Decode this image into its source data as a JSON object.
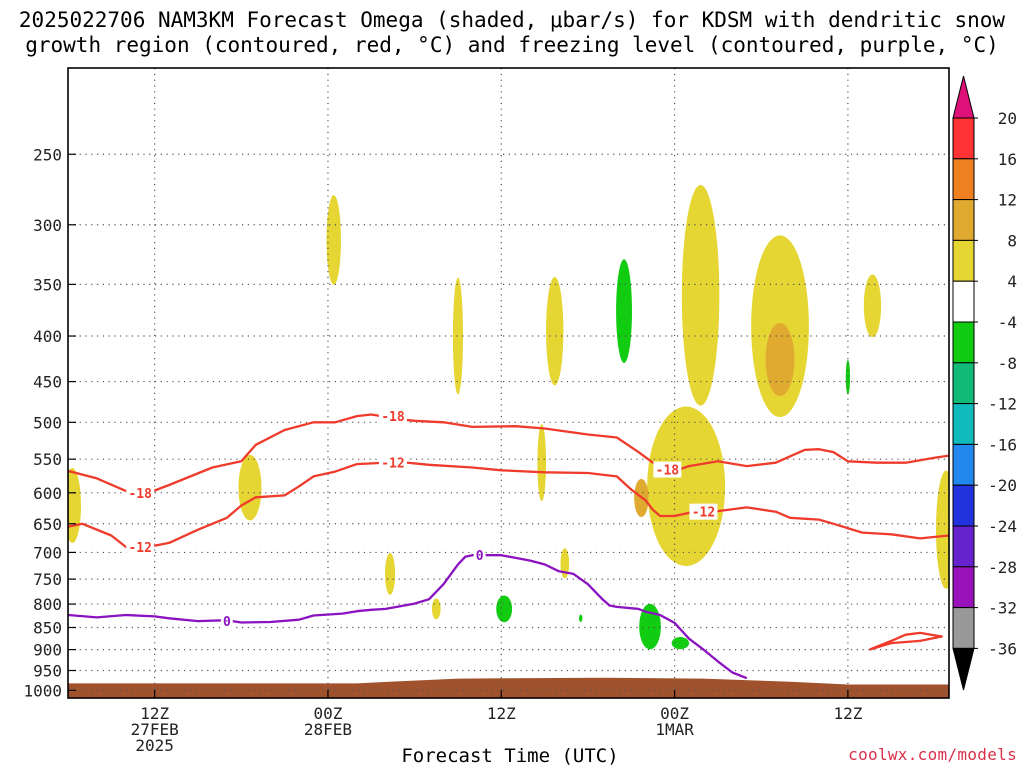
{
  "title_line1": "2025022706 NAM3KM Forecast Omega (shaded, μbar/s) for KDSM with dendritic snow",
  "title_line2": "growth region (contoured, red, °C) and freezing level (contoured, purple, °C)",
  "xlabel": "Forecast Time (UTC)",
  "credit": "coolwx.com/models",
  "chart_data": {
    "type": "heatmap",
    "title": "2025022706 NAM3KM Forecast Omega (shaded, μbar/s) for KDSM with dendritic snow growth region (contoured, red, °C) and freezing level (contoured, purple, °C)",
    "xlabel": "Forecast Time (UTC)",
    "ylabel": "",
    "y_scale": "log-pressure (hPa)",
    "ylim": [
      1020,
      200
    ],
    "xlim": [
      0,
      61
    ],
    "x_units": "forecast hours after 2025-02-27 06Z",
    "grid": "dotted horizontal lines at each pressure level and vertical lines at each 12-hour mark",
    "y_ticks": [
      250,
      300,
      350,
      400,
      450,
      500,
      550,
      600,
      650,
      700,
      750,
      800,
      850,
      900,
      950,
      1000
    ],
    "x_ticks": [
      {
        "x": 6,
        "lines": [
          "12Z",
          "27FEB",
          "2025"
        ]
      },
      {
        "x": 18,
        "lines": [
          "00Z",
          "28FEB"
        ]
      },
      {
        "x": 30,
        "lines": [
          "12Z"
        ]
      },
      {
        "x": 42,
        "lines": [
          "00Z",
          "1MAR"
        ]
      },
      {
        "x": 54,
        "lines": [
          "12Z"
        ]
      }
    ],
    "colorbar": {
      "labels": [
        "20",
        "16",
        "12",
        "8",
        "4",
        "-4",
        "-8",
        "-12",
        "-16",
        "-20",
        "-24",
        "-28",
        "-32",
        "-36"
      ],
      "colors": [
        "#ff3333",
        "#ee8022",
        "#e0a930",
        "#e6d633",
        "#ffffff",
        "#11cc11",
        "#11bb77",
        "#11bbbb",
        "#2288ee",
        "#2233dd",
        "#6622cc",
        "#9911bb",
        "#999999"
      ],
      "top_arrow_color": "#dd1177",
      "bottom_arrow_color": "#000000"
    },
    "series": [
      {
        "name": "-18",
        "color": "#ef3b2c",
        "points": [
          [
            0,
            567
          ],
          [
            2,
            578
          ],
          [
            4,
            597
          ],
          [
            5,
            605
          ],
          [
            7,
            588
          ],
          [
            10,
            562
          ],
          [
            12,
            553
          ],
          [
            13,
            530
          ],
          [
            15,
            510
          ],
          [
            17,
            500
          ],
          [
            18.5,
            500
          ],
          [
            20,
            492
          ],
          [
            21,
            490
          ],
          [
            23,
            496
          ],
          [
            24,
            498
          ],
          [
            26,
            500
          ],
          [
            28,
            506
          ],
          [
            31,
            505
          ],
          [
            33,
            508
          ],
          [
            36,
            516
          ],
          [
            38,
            520
          ],
          [
            39.5,
            540
          ],
          [
            40.5,
            555
          ],
          [
            41.5,
            565
          ],
          [
            42,
            567
          ],
          [
            43,
            560
          ],
          [
            45,
            553
          ],
          [
            47,
            560
          ],
          [
            49,
            555
          ],
          [
            51,
            537
          ],
          [
            52,
            536
          ],
          [
            53,
            540
          ],
          [
            54,
            553
          ],
          [
            56,
            555
          ],
          [
            58,
            555
          ],
          [
            60,
            548
          ],
          [
            61,
            545
          ]
        ],
        "labels": [
          {
            "x": 5,
            "y": 600,
            "text": "-18"
          },
          {
            "x": 22.5,
            "y": 492,
            "text": "-18"
          },
          {
            "x": 41.5,
            "y": 565,
            "text": "-18"
          }
        ]
      },
      {
        "name": "-12",
        "color": "#ef3b2c",
        "points": [
          [
            0,
            655
          ],
          [
            1,
            650
          ],
          [
            3,
            670
          ],
          [
            4,
            690
          ],
          [
            5,
            693
          ],
          [
            7,
            683
          ],
          [
            9,
            660
          ],
          [
            11,
            640
          ],
          [
            12,
            620
          ],
          [
            13,
            607
          ],
          [
            15,
            604
          ],
          [
            16,
            590
          ],
          [
            17,
            575
          ],
          [
            18.5,
            568
          ],
          [
            20,
            557
          ],
          [
            23,
            554
          ],
          [
            25,
            558
          ],
          [
            28,
            562
          ],
          [
            30,
            566
          ],
          [
            33,
            569
          ],
          [
            36,
            570
          ],
          [
            38,
            575
          ],
          [
            39,
            595
          ],
          [
            40,
            612
          ],
          [
            40.5,
            627
          ],
          [
            41,
            637
          ],
          [
            42,
            637
          ],
          [
            43,
            632
          ],
          [
            45,
            629
          ],
          [
            47,
            623
          ],
          [
            49,
            630
          ],
          [
            50,
            640
          ],
          [
            52,
            643
          ],
          [
            53,
            650
          ],
          [
            55,
            665
          ],
          [
            57,
            668
          ],
          [
            59,
            675
          ],
          [
            61,
            670
          ]
        ],
        "labels": [
          {
            "x": 5,
            "y": 690,
            "text": "-12"
          },
          {
            "x": 22.5,
            "y": 555,
            "text": "-12"
          },
          {
            "x": 44,
            "y": 630,
            "text": "-12"
          }
        ]
      },
      {
        "name": "0",
        "color": "#8a12c0",
        "points": [
          [
            0,
            823
          ],
          [
            2,
            828
          ],
          [
            4,
            823
          ],
          [
            6,
            826
          ],
          [
            7,
            830
          ],
          [
            9,
            836
          ],
          [
            11,
            834
          ],
          [
            12,
            839
          ],
          [
            14,
            838
          ],
          [
            16,
            833
          ],
          [
            17,
            824
          ],
          [
            19,
            820
          ],
          [
            20,
            815
          ],
          [
            21,
            812
          ],
          [
            22,
            810
          ],
          [
            24,
            799
          ],
          [
            25,
            790
          ],
          [
            26,
            760
          ],
          [
            27,
            722
          ],
          [
            27.5,
            708
          ],
          [
            28,
            705
          ],
          [
            30,
            705
          ],
          [
            31,
            710
          ],
          [
            32,
            715
          ],
          [
            33,
            722
          ],
          [
            34,
            735
          ],
          [
            35,
            740
          ],
          [
            36,
            760
          ],
          [
            37,
            790
          ],
          [
            37.5,
            803
          ],
          [
            38,
            806
          ],
          [
            39.5,
            810
          ],
          [
            40,
            816
          ],
          [
            41,
            823
          ],
          [
            42,
            840
          ],
          [
            43,
            875
          ],
          [
            44,
            900
          ],
          [
            45,
            928
          ],
          [
            46,
            955
          ],
          [
            47,
            969
          ]
        ],
        "labels": [
          {
            "x": 11,
            "y": 836,
            "text": "0"
          },
          {
            "x": 28.5,
            "y": 705,
            "text": "0"
          }
        ]
      },
      {
        "name": "",
        "color": "#ef3b2c",
        "points": [
          [
            55.5,
            900
          ],
          [
            57,
            880
          ],
          [
            58,
            866
          ],
          [
            59,
            862
          ],
          [
            60.5,
            870
          ],
          [
            59,
            880
          ],
          [
            57,
            885
          ],
          [
            55.5,
            900
          ]
        ],
        "labels": []
      }
    ],
    "omega_cells": [
      {
        "cx": 18.4,
        "p": 312,
        "rx": 0.5,
        "ry": 36,
        "color": "#e6d633"
      },
      {
        "cx": 0.3,
        "p": 620,
        "rx": 0.6,
        "ry": 60,
        "color": "#e6d633"
      },
      {
        "cx": 12.6,
        "p": 592,
        "rx": 0.8,
        "ry": 50,
        "color": "#e6d633"
      },
      {
        "cx": 22.3,
        "p": 740,
        "rx": 0.35,
        "ry": 40,
        "color": "#e6d633"
      },
      {
        "cx": 25.5,
        "p": 810,
        "rx": 0.3,
        "ry": 22,
        "color": "#e6d633"
      },
      {
        "cx": 27,
        "p": 400,
        "rx": 0.35,
        "ry": 60,
        "color": "#e6d633"
      },
      {
        "cx": 32.8,
        "p": 555,
        "rx": 0.3,
        "ry": 55,
        "color": "#e6d633"
      },
      {
        "cx": 33.7,
        "p": 395,
        "rx": 0.6,
        "ry": 55,
        "color": "#e6d633"
      },
      {
        "cx": 34.4,
        "p": 720,
        "rx": 0.3,
        "ry": 28,
        "color": "#e6d633"
      },
      {
        "cx": 43.8,
        "p": 360,
        "rx": 1.3,
        "ry": 100,
        "color": "#e6d633"
      },
      {
        "cx": 42.8,
        "p": 590,
        "rx": 2.7,
        "ry": 120,
        "color": "#e6d633"
      },
      {
        "cx": 49.3,
        "p": 390,
        "rx": 2.0,
        "ry": 90,
        "color": "#e6d633"
      },
      {
        "cx": 55.7,
        "p": 370,
        "rx": 0.6,
        "ry": 30,
        "color": "#e6d633"
      },
      {
        "cx": 60.8,
        "p": 660,
        "rx": 0.7,
        "ry": 100,
        "color": "#e6d633"
      },
      {
        "cx": 49.3,
        "p": 425,
        "rx": 1.0,
        "ry": 40,
        "color": "#e0a930"
      },
      {
        "cx": 39.7,
        "p": 608,
        "rx": 0.5,
        "ry": 30,
        "color": "#e0a930"
      },
      {
        "cx": 38.5,
        "p": 375,
        "rx": 0.55,
        "ry": 50,
        "color": "#11cc11"
      },
      {
        "cx": 54,
        "p": 445,
        "rx": 0.15,
        "ry": 20,
        "color": "#11cc11"
      },
      {
        "cx": 30.2,
        "p": 810,
        "rx": 0.55,
        "ry": 28,
        "color": "#11cc11"
      },
      {
        "cx": 35.5,
        "p": 830,
        "rx": 0.12,
        "ry": 8,
        "color": "#11cc11"
      },
      {
        "cx": 40.3,
        "p": 848,
        "rx": 0.75,
        "ry": 50,
        "color": "#11cc11"
      },
      {
        "cx": 42.4,
        "p": 885,
        "rx": 0.6,
        "ry": 14,
        "color": "#11cc11"
      }
    ],
    "terrain": {
      "color": "#a0522d",
      "top_hpa": [
        [
          0,
          982
        ],
        [
          20,
          982
        ],
        [
          27,
          970
        ],
        [
          37,
          968
        ],
        [
          44,
          970
        ],
        [
          50,
          978
        ],
        [
          54,
          985
        ],
        [
          61,
          985
        ]
      ]
    }
  }
}
